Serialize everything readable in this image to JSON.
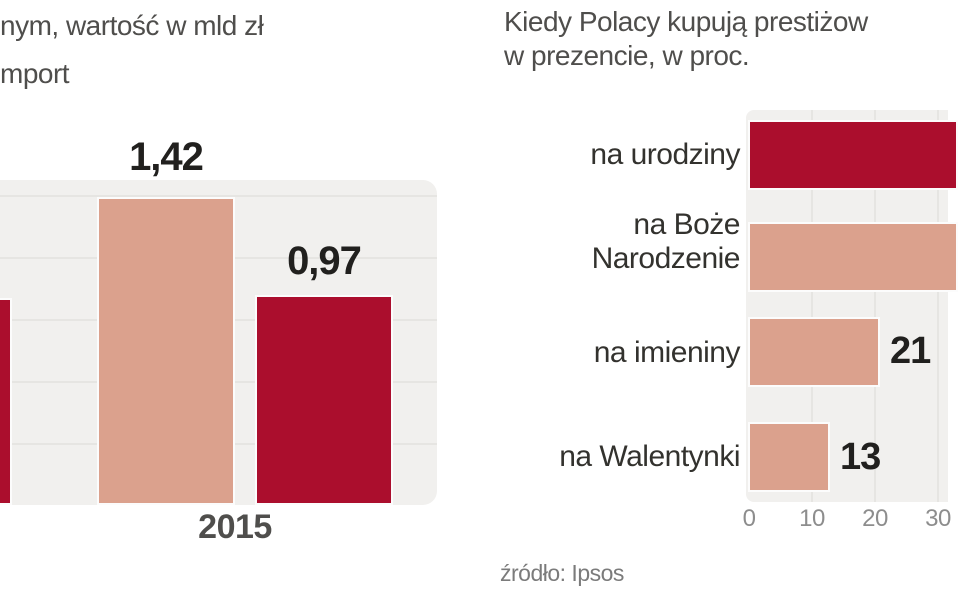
{
  "colors": {
    "crimson": "#ab0e2d",
    "salmon": "#dba18d",
    "plot_background": "#f1f0ee",
    "gridline": "#e6e5e2",
    "title_text": "#4f4e4c",
    "label_text": "#33322e",
    "value_text": "#21201e",
    "tick_text": "#8d8d8d",
    "source_text": "#7b7b7b",
    "page_background": "#ffffff"
  },
  "chart_data": [
    {
      "type": "bar",
      "orientation": "vertical",
      "title_visible": "nym, wartość w mld zł",
      "legend_label_visible": "mport",
      "categories": [
        "2015"
      ],
      "series": [
        {
          "name": "bar-light",
          "label": "1,42",
          "value": 1.42,
          "color": "#dba18d"
        },
        {
          "name": "bar-dark",
          "label": "0,97",
          "value": 0.97,
          "color": "#ab0e2d"
        }
      ],
      "ylim": [
        0,
        1.5
      ],
      "grid": "horizontal",
      "left_edge_clipped": true
    },
    {
      "type": "bar",
      "orientation": "horizontal",
      "title_lines": [
        "Kiedy Polacy kupują prestiżow",
        "w prezencie, w proc."
      ],
      "categories": [
        "na urodziny",
        "na Boże Narodzenie",
        "na imieniny",
        "na Walentynki"
      ],
      "categories_lines": [
        [
          "na urodziny"
        ],
        [
          "na Boże",
          "Narodzenie"
        ],
        [
          "na imieniny"
        ],
        [
          "na Walentynki"
        ]
      ],
      "values": [
        null,
        null,
        21,
        13
      ],
      "value_labels": [
        null,
        null,
        "21",
        "13"
      ],
      "bar_colors": [
        "#ab0e2d",
        "#dba18d",
        "#dba18d",
        "#dba18d"
      ],
      "bars_clipped_right": [
        true,
        true,
        false,
        false
      ],
      "x_ticks": [
        "0",
        "10",
        "20",
        "30"
      ],
      "xlim_visible": [
        0,
        32
      ],
      "grid": "vertical",
      "source": "źródło: Ipsos"
    }
  ]
}
